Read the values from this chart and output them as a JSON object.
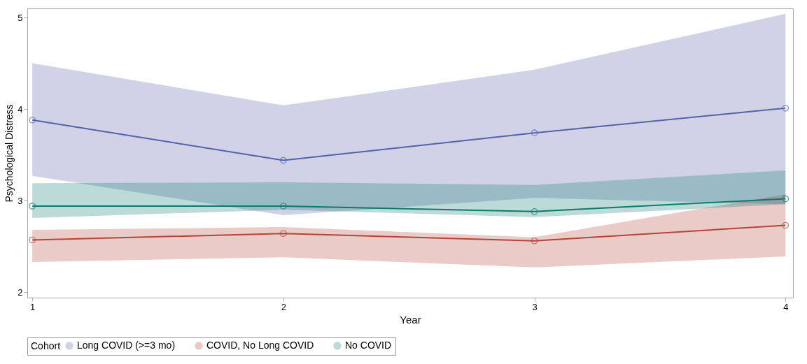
{
  "chart_data": {
    "type": "line",
    "xlabel": "Year",
    "ylabel": "Psychological Distress",
    "legend_title": "Cohort",
    "x": [
      1,
      2,
      3,
      4
    ],
    "xlim": [
      0.98,
      4.03
    ],
    "xticks": [
      1,
      2,
      3,
      4
    ],
    "ylim": [
      1.94,
      5.1
    ],
    "yticks": [
      2,
      3,
      4,
      5
    ],
    "grid": false,
    "legend": "bottom",
    "marker": "circle",
    "line_style": "solid",
    "series": [
      {
        "name": "Long COVID (>=3 mo)",
        "color": "#5561a8",
        "values": [
          3.88,
          3.44,
          3.74,
          4.01
        ],
        "lower": [
          3.27,
          2.84,
          3.03,
          2.96
        ],
        "upper": [
          4.5,
          4.04,
          4.43,
          5.04
        ]
      },
      {
        "name": "COVID, No Long COVID",
        "color": "#b5453a",
        "values": [
          2.57,
          2.64,
          2.56,
          2.73
        ],
        "lower": [
          2.33,
          2.38,
          2.27,
          2.39
        ],
        "upper": [
          2.68,
          2.71,
          2.6,
          3.07
        ]
      },
      {
        "name": "No COVID",
        "color": "#0e7a6e",
        "values": [
          2.94,
          2.94,
          2.88,
          3.02
        ],
        "lower": [
          2.81,
          2.9,
          2.82,
          2.96
        ],
        "upper": [
          3.19,
          3.2,
          3.17,
          3.33
        ]
      }
    ]
  }
}
